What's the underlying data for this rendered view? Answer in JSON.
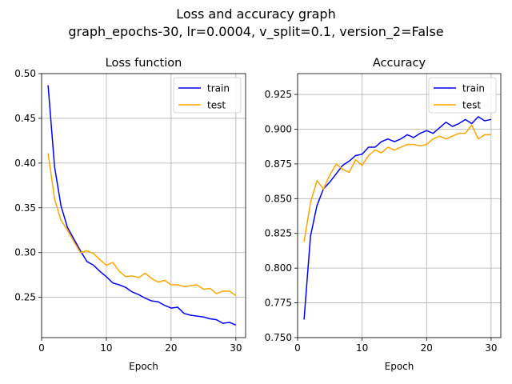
{
  "figure": {
    "title_line1": "Loss and accuracy graph",
    "title_line2": "graph_epochs-30, lr=0.0004, v_split=0.1, version_2=False"
  },
  "colors": {
    "train": "#0000ff",
    "test": "#ffa500",
    "grid": "#b0b0b0"
  },
  "chart_data": [
    {
      "type": "line",
      "title": "Loss function",
      "xlabel": "Epoch",
      "ylabel": "",
      "xlim": [
        0,
        31.5
      ],
      "ylim": [
        0.205,
        0.5
      ],
      "xticks": [
        0,
        10,
        20,
        30
      ],
      "yticks": [
        0.25,
        0.3,
        0.35,
        0.4,
        0.45,
        0.5
      ],
      "ytick_decimals": 2,
      "grid": true,
      "legend": "top-right",
      "x": [
        1,
        2,
        3,
        4,
        5,
        6,
        7,
        8,
        9,
        10,
        11,
        12,
        13,
        14,
        15,
        16,
        17,
        18,
        19,
        20,
        21,
        22,
        23,
        24,
        25,
        26,
        27,
        28,
        29,
        30
      ],
      "series": [
        {
          "name": "train",
          "color": "#0000ff",
          "values": [
            0.487,
            0.396,
            0.352,
            0.328,
            0.315,
            0.302,
            0.29,
            0.286,
            0.279,
            0.273,
            0.266,
            0.264,
            0.261,
            0.256,
            0.253,
            0.249,
            0.246,
            0.245,
            0.241,
            0.238,
            0.239,
            0.232,
            0.23,
            0.229,
            0.228,
            0.226,
            0.225,
            0.221,
            0.222,
            0.219
          ]
        },
        {
          "name": "test",
          "color": "#ffa500",
          "values": [
            0.411,
            0.36,
            0.336,
            0.325,
            0.312,
            0.3,
            0.302,
            0.299,
            0.292,
            0.286,
            0.289,
            0.279,
            0.273,
            0.274,
            0.272,
            0.277,
            0.271,
            0.267,
            0.269,
            0.264,
            0.264,
            0.262,
            0.263,
            0.264,
            0.259,
            0.26,
            0.254,
            0.257,
            0.257,
            0.252
          ]
        }
      ]
    },
    {
      "type": "line",
      "title": "Accuracy",
      "xlabel": "Epoch",
      "ylabel": "",
      "xlim": [
        0,
        31.5
      ],
      "ylim": [
        0.75,
        0.94
      ],
      "xticks": [
        0,
        10,
        20,
        30
      ],
      "yticks": [
        0.75,
        0.775,
        0.8,
        0.825,
        0.85,
        0.875,
        0.9,
        0.925
      ],
      "ytick_decimals": 3,
      "grid": true,
      "legend": "top-right",
      "x": [
        1,
        2,
        3,
        4,
        5,
        6,
        7,
        8,
        9,
        10,
        11,
        12,
        13,
        14,
        15,
        16,
        17,
        18,
        19,
        20,
        21,
        22,
        23,
        24,
        25,
        26,
        27,
        28,
        29,
        30
      ],
      "series": [
        {
          "name": "train",
          "color": "#0000ff",
          "values": [
            0.763,
            0.823,
            0.845,
            0.857,
            0.862,
            0.868,
            0.874,
            0.877,
            0.881,
            0.882,
            0.887,
            0.887,
            0.891,
            0.893,
            0.891,
            0.893,
            0.896,
            0.894,
            0.897,
            0.899,
            0.897,
            0.901,
            0.905,
            0.902,
            0.904,
            0.907,
            0.904,
            0.909,
            0.906,
            0.907
          ]
        },
        {
          "name": "test",
          "color": "#ffa500",
          "values": [
            0.819,
            0.847,
            0.863,
            0.857,
            0.867,
            0.875,
            0.871,
            0.869,
            0.878,
            0.874,
            0.881,
            0.885,
            0.883,
            0.887,
            0.885,
            0.887,
            0.889,
            0.889,
            0.888,
            0.889,
            0.893,
            0.895,
            0.893,
            0.895,
            0.897,
            0.897,
            0.903,
            0.893,
            0.896,
            0.896
          ]
        }
      ]
    }
  ]
}
